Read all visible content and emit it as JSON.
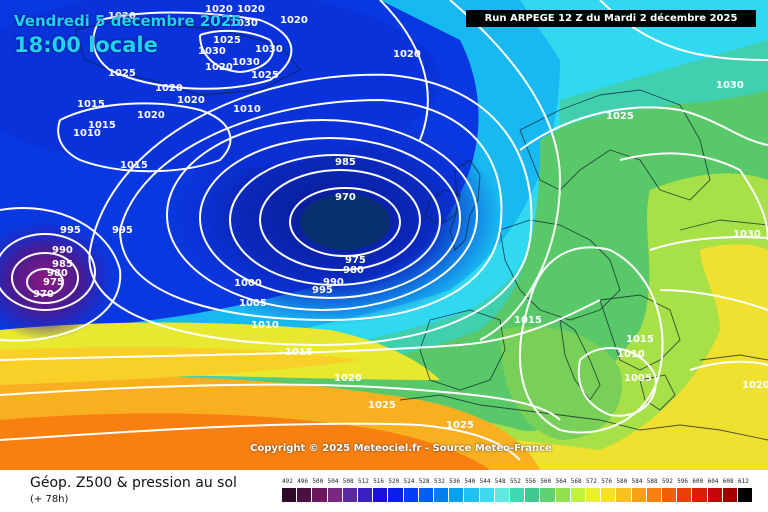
{
  "header": {
    "date": "Vendredi 5 décembre 2025",
    "time": "18:00 locale",
    "run_info": "Run ARPEGE 12 Z du Mardi 2 décembre 2025"
  },
  "copyright": "Copyright © 2025 Meteociel.fr - Source Meteo-France",
  "footer": {
    "title": "Géop. Z500 & pression au sol",
    "subtitle": "(+ 78h)"
  },
  "scale": {
    "values": [
      "492",
      "496",
      "500",
      "504",
      "508",
      "512",
      "516",
      "520",
      "524",
      "528",
      "532",
      "536",
      "540",
      "544",
      "548",
      "552",
      "556",
      "560",
      "564",
      "568",
      "572",
      "576",
      "580",
      "584",
      "588",
      "592",
      "596",
      "600",
      "604",
      "608",
      "612"
    ],
    "colors": [
      "#2e0a28",
      "#4a1040",
      "#6a1860",
      "#7a2880",
      "#5a2aa0",
      "#3a20c0",
      "#1a10d8",
      "#0a20e8",
      "#0040f0",
      "#0060f0",
      "#0080f0",
      "#00a0f0",
      "#20c0f0",
      "#40d8f0",
      "#60e8e0",
      "#40d8b0",
      "#40c890",
      "#60d070",
      "#90e050",
      "#c0f040",
      "#e8f030",
      "#f8e028",
      "#f8c020",
      "#f8a018",
      "#f88010",
      "#f06008",
      "#e84008",
      "#d82008",
      "#c00808",
      "#a00000",
      "#000000"
    ]
  },
  "isobars": [
    {
      "label": "1020"
    },
    {
      "label": "1020"
    },
    {
      "label": "1020"
    },
    {
      "label": "1030"
    },
    {
      "label": "1020"
    },
    {
      "label": "1025"
    },
    {
      "label": "1030"
    },
    {
      "label": "1030"
    },
    {
      "label": "1030"
    },
    {
      "label": "1025"
    },
    {
      "label": "1020"
    },
    {
      "label": "1025"
    },
    {
      "label": "1020"
    },
    {
      "label": "1015"
    },
    {
      "label": "1015"
    },
    {
      "label": "1010"
    },
    {
      "label": "1020"
    },
    {
      "label": "1020"
    },
    {
      "label": "1010"
    },
    {
      "label": "1015"
    },
    {
      "label": "985"
    },
    {
      "label": "970"
    },
    {
      "label": "995"
    },
    {
      "label": "995"
    },
    {
      "label": "990"
    },
    {
      "label": "985"
    },
    {
      "label": "980"
    },
    {
      "label": "975"
    },
    {
      "label": "970"
    },
    {
      "label": "975"
    },
    {
      "label": "980"
    },
    {
      "label": "990"
    },
    {
      "label": "995"
    },
    {
      "label": "1000"
    },
    {
      "label": "1005"
    },
    {
      "label": "1010"
    },
    {
      "label": "1015"
    },
    {
      "label": "1020"
    },
    {
      "label": "1025"
    },
    {
      "label": "1025"
    },
    {
      "label": "1020"
    },
    {
      "label": "1030"
    },
    {
      "label": "1025"
    },
    {
      "label": "1030"
    },
    {
      "label": "1015"
    },
    {
      "label": "1015"
    },
    {
      "label": "1010"
    },
    {
      "label": "1005"
    },
    {
      "label": "1020"
    }
  ]
}
